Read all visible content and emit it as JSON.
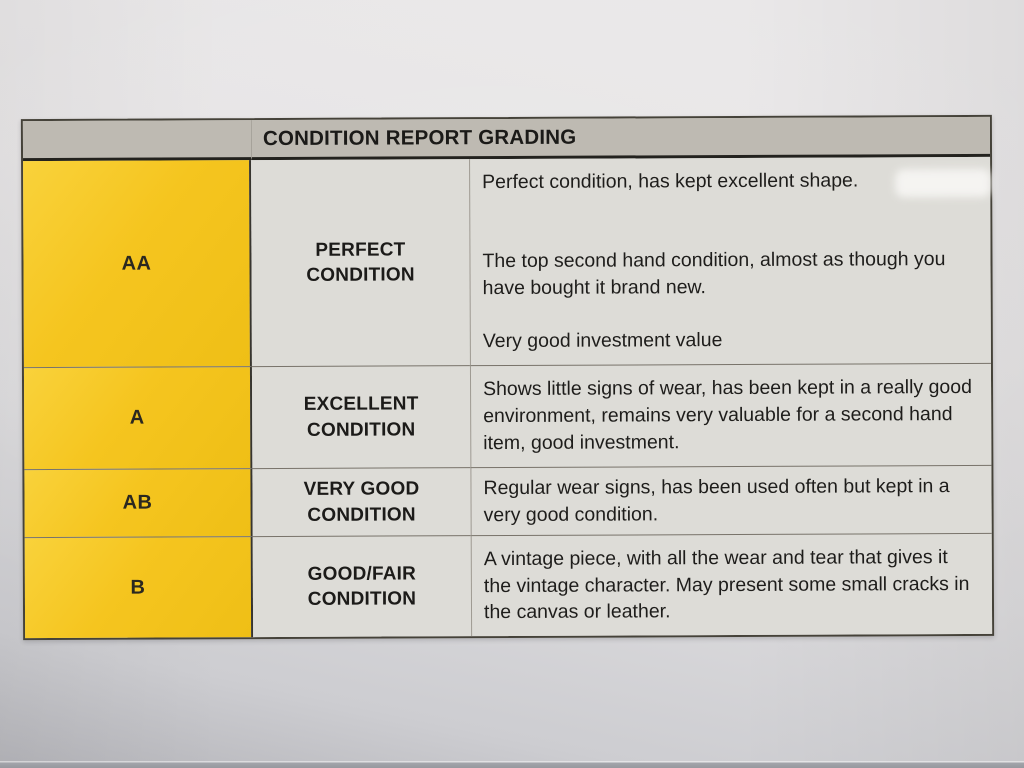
{
  "table": {
    "title": "CONDITION REPORT GRADING",
    "rows": [
      {
        "grade": "AA",
        "condition_name": "PERFECT CONDITION",
        "descriptions": [
          "Perfect condition, has kept excellent shape.",
          "The top second hand condition, almost as though you have bought it brand new.",
          "Very good investment value"
        ]
      },
      {
        "grade": "A",
        "condition_name": "EXCELLENT CONDITION",
        "descriptions": [
          "Shows little signs of wear, has been kept in a really good environment, remains very valuable for a second hand item, good investment."
        ]
      },
      {
        "grade": "AB",
        "condition_name": "VERY GOOD CONDITION",
        "descriptions": [
          "Regular wear signs, has been used often but kept in a very good condition."
        ]
      },
      {
        "grade": "B",
        "condition_name": "GOOD/FAIR CONDITION",
        "descriptions": [
          "A vintage piece, with all the wear and tear that gives it the vintage character. May present some small cracks in the canvas or leather."
        ]
      }
    ]
  },
  "colors": {
    "grade_yellow": "#f5c51f",
    "header_gray": "#beba b2",
    "cell_gray": "#dddcd7",
    "border_dark": "#454239",
    "text": "#1e1d1b"
  }
}
